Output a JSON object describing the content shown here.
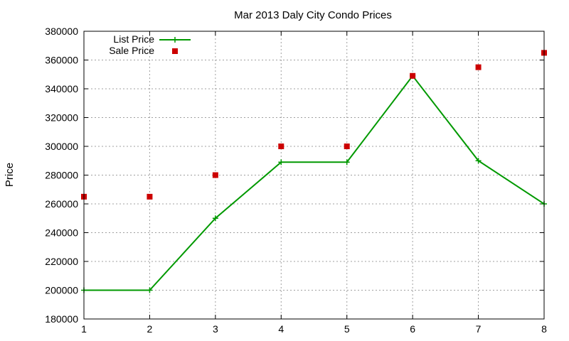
{
  "chart_data": {
    "type": "line",
    "title": "Mar 2013 Daly City Condo Prices",
    "xlabel": "",
    "ylabel": "Price",
    "x": [
      1,
      2,
      3,
      4,
      5,
      6,
      7,
      8
    ],
    "xlim": [
      1,
      8
    ],
    "ylim": [
      180000,
      380000
    ],
    "x_ticks": [
      "1",
      "2",
      "3",
      "4",
      "5",
      "6",
      "7",
      "8"
    ],
    "y_ticks": [
      "180000",
      "200000",
      "220000",
      "240000",
      "260000",
      "280000",
      "300000",
      "320000",
      "340000",
      "360000",
      "380000"
    ],
    "grid": true,
    "legend_position": "top-left",
    "series": [
      {
        "name": "List Price",
        "style": "line-with-plus-markers",
        "color": "#009900",
        "values": [
          200000,
          200000,
          250000,
          289000,
          289000,
          349000,
          290000,
          260000
        ]
      },
      {
        "name": "Sale Price",
        "style": "square-markers",
        "color": "#cc0000",
        "values": [
          265000,
          265000,
          280000,
          300000,
          300000,
          349000,
          355000,
          365000
        ]
      }
    ]
  }
}
